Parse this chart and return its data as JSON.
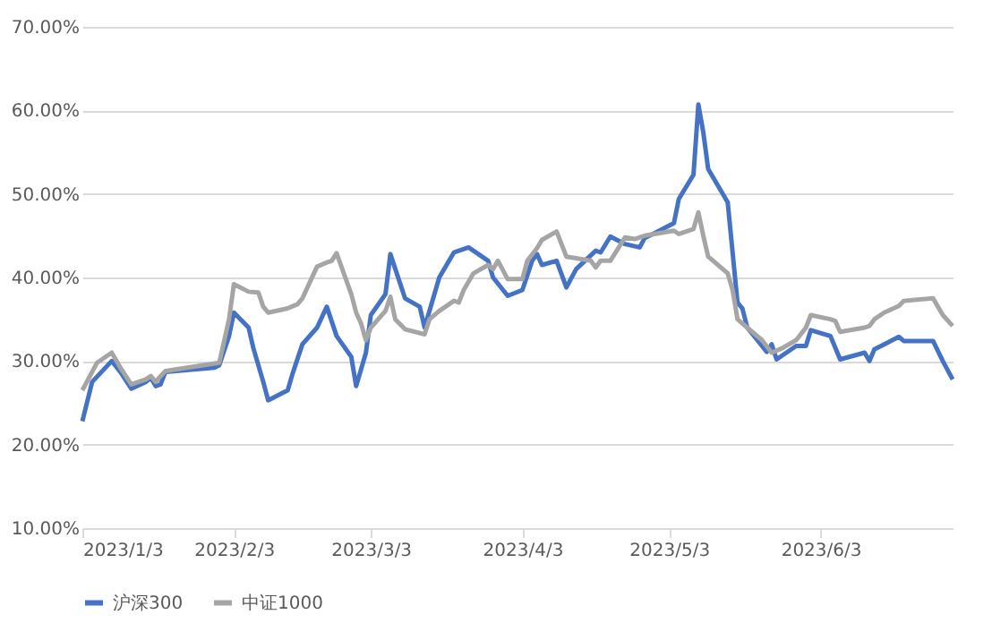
{
  "chart_data": {
    "type": "line",
    "xlim": [
      "2023-01-03",
      "2023-06-30"
    ],
    "xticks": [
      {
        "value": "2023-01-03",
        "label": "2023/1/3"
      },
      {
        "value": "2023-02-03",
        "label": "2023/2/3"
      },
      {
        "value": "2023-03-03",
        "label": "2023/3/3"
      },
      {
        "value": "2023-04-03",
        "label": "2023/4/3"
      },
      {
        "value": "2023-05-03",
        "label": "2023/5/3"
      },
      {
        "value": "2023-06-03",
        "label": "2023/6/3"
      }
    ],
    "ylim": [
      10,
      70
    ],
    "yticks": [
      {
        "value": 10,
        "label": "10.00%"
      },
      {
        "value": 20,
        "label": "20.00%"
      },
      {
        "value": 30,
        "label": "30.00%"
      },
      {
        "value": 40,
        "label": "40.00%"
      },
      {
        "value": 50,
        "label": "50.00%"
      },
      {
        "value": 60,
        "label": "60.00%"
      },
      {
        "value": 70,
        "label": "70.00%"
      }
    ],
    "grid": "y",
    "legend": "bottom",
    "marker": "none",
    "line_style": "solid",
    "series": [
      {
        "name": "沪深300",
        "color": "#4472c4",
        "x": [
          "2023-01-03",
          "2023-01-05",
          "2023-01-09",
          "2023-01-11",
          "2023-01-13",
          "2023-01-16",
          "2023-01-17",
          "2023-01-18",
          "2023-01-19",
          "2023-01-20",
          "2023-01-30",
          "2023-01-31",
          "2023-02-02",
          "2023-02-03",
          "2023-02-06",
          "2023-02-07",
          "2023-02-09",
          "2023-02-10",
          "2023-02-14",
          "2023-02-15",
          "2023-02-17",
          "2023-02-20",
          "2023-02-22",
          "2023-02-24",
          "2023-02-27",
          "2023-02-28",
          "2023-03-02",
          "2023-03-03",
          "2023-03-06",
          "2023-03-07",
          "2023-03-10",
          "2023-03-13",
          "2023-03-14",
          "2023-03-17",
          "2023-03-20",
          "2023-03-23",
          "2023-03-27",
          "2023-03-28",
          "2023-03-31",
          "2023-04-03",
          "2023-04-05",
          "2023-04-06",
          "2023-04-07",
          "2023-04-10",
          "2023-04-12",
          "2023-04-14",
          "2023-04-18",
          "2023-04-19",
          "2023-04-21",
          "2023-04-24",
          "2023-04-27",
          "2023-04-28",
          "2023-05-04",
          "2023-05-05",
          "2023-05-08",
          "2023-05-09",
          "2023-05-10",
          "2023-05-11",
          "2023-05-15",
          "2023-05-17",
          "2023-05-18",
          "2023-05-19",
          "2023-05-23",
          "2023-05-24",
          "2023-05-25",
          "2023-05-29",
          "2023-05-31",
          "2023-06-01",
          "2023-06-05",
          "2023-06-07",
          "2023-06-12",
          "2023-06-13",
          "2023-06-14",
          "2023-06-16",
          "2023-06-19",
          "2023-06-20",
          "2023-06-26",
          "2023-06-28",
          "2023-06-30"
        ],
        "values": [
          22.8,
          27.5,
          30.0,
          28.5,
          26.7,
          27.5,
          28.0,
          27.0,
          27.2,
          28.7,
          29.2,
          29.5,
          33.0,
          35.8,
          34.0,
          31.5,
          27.5,
          25.3,
          26.5,
          28.5,
          32.0,
          34.0,
          36.5,
          33.0,
          30.5,
          27.0,
          31.0,
          35.5,
          38.0,
          42.8,
          37.5,
          36.5,
          34.0,
          40.0,
          43.0,
          43.6,
          42.0,
          40.0,
          37.8,
          38.5,
          42.0,
          42.8,
          41.5,
          42.0,
          38.8,
          41.0,
          43.2,
          43.0,
          44.9,
          44.0,
          43.6,
          44.7,
          46.5,
          49.4,
          52.3,
          60.7,
          57.4,
          53.0,
          49.0,
          37.0,
          36.3,
          34.0,
          31.1,
          32.0,
          30.2,
          31.8,
          31.8,
          33.7,
          33.0,
          30.2,
          31.0,
          30.0,
          31.4,
          32.0,
          32.9,
          32.4,
          32.4,
          30.0,
          27.8
        ]
      },
      {
        "name": "中证1000",
        "color": "#a5a5a5",
        "x": [
          "2023-01-03",
          "2023-01-06",
          "2023-01-09",
          "2023-01-11",
          "2023-01-13",
          "2023-01-16",
          "2023-01-17",
          "2023-01-18",
          "2023-01-19",
          "2023-01-20",
          "2023-01-31",
          "2023-02-02",
          "2023-02-03",
          "2023-02-06",
          "2023-02-08",
          "2023-02-09",
          "2023-02-10",
          "2023-02-14",
          "2023-02-16",
          "2023-02-17",
          "2023-02-20",
          "2023-02-22",
          "2023-02-23",
          "2023-02-24",
          "2023-02-27",
          "2023-02-28",
          "2023-03-01",
          "2023-03-02",
          "2023-03-03",
          "2023-03-06",
          "2023-03-07",
          "2023-03-08",
          "2023-03-10",
          "2023-03-14",
          "2023-03-15",
          "2023-03-17",
          "2023-03-20",
          "2023-03-21",
          "2023-03-22",
          "2023-03-24",
          "2023-03-27",
          "2023-03-28",
          "2023-03-29",
          "2023-03-31",
          "2023-04-03",
          "2023-04-04",
          "2023-04-06",
          "2023-04-07",
          "2023-04-10",
          "2023-04-12",
          "2023-04-14",
          "2023-04-17",
          "2023-04-18",
          "2023-04-19",
          "2023-04-21",
          "2023-04-24",
          "2023-04-26",
          "2023-04-28",
          "2023-05-04",
          "2023-05-05",
          "2023-05-08",
          "2023-05-09",
          "2023-05-10",
          "2023-05-11",
          "2023-05-15",
          "2023-05-16",
          "2023-05-17",
          "2023-05-19",
          "2023-05-22",
          "2023-05-24",
          "2023-05-26",
          "2023-05-29",
          "2023-05-31",
          "2023-06-01",
          "2023-06-05",
          "2023-06-06",
          "2023-06-07",
          "2023-06-12",
          "2023-06-13",
          "2023-06-14",
          "2023-06-16",
          "2023-06-19",
          "2023-06-20",
          "2023-06-26",
          "2023-06-28",
          "2023-06-30"
        ],
        "values": [
          26.5,
          29.8,
          31.0,
          29.0,
          27.2,
          27.8,
          28.2,
          27.5,
          28.2,
          28.8,
          29.8,
          35.0,
          39.2,
          38.3,
          38.2,
          36.5,
          35.8,
          36.3,
          36.8,
          37.5,
          41.3,
          41.8,
          42.0,
          42.9,
          38.0,
          35.8,
          34.5,
          32.5,
          34.0,
          36.0,
          37.7,
          35.0,
          33.8,
          33.2,
          35.0,
          36.0,
          37.2,
          37.0,
          38.5,
          40.5,
          41.5,
          41.0,
          42.0,
          39.8,
          39.8,
          42.0,
          43.5,
          44.5,
          45.5,
          42.5,
          42.3,
          42.0,
          41.2,
          42.0,
          42.0,
          44.8,
          44.6,
          45.0,
          45.6,
          45.2,
          45.8,
          47.8,
          45.0,
          42.5,
          40.5,
          38.5,
          35.0,
          34.0,
          32.5,
          31.0,
          31.5,
          32.5,
          34.0,
          35.5,
          35.0,
          34.8,
          33.5,
          34.0,
          34.2,
          35.0,
          35.8,
          36.6,
          37.2,
          37.5,
          35.5,
          34.2
        ]
      }
    ]
  }
}
